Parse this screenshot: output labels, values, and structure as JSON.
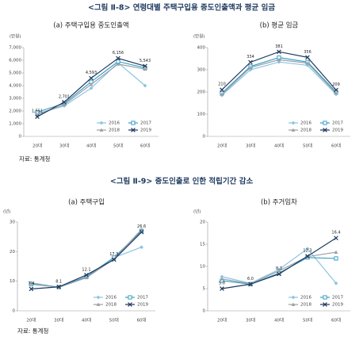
{
  "figures": [
    {
      "title": "<그림 Ⅱ-8> 연령대별 주택구입용 중도인출액과 평균 임금",
      "source": "자료: 통계청"
    },
    {
      "title": "<그림 Ⅱ-9> 중도인출로 인한 적립기간 감소",
      "source": "자료: 통계청"
    }
  ],
  "chart_data": [
    {
      "type": "line",
      "title": "(a) 주택구입용 중도인출액",
      "ylabel": "(만원)",
      "categories": [
        "20대",
        "30대",
        "40대",
        "50대",
        "60대"
      ],
      "ylim": [
        0,
        7000
      ],
      "yticks": [
        0,
        {
          "value": 1000,
          "label": "1,000"
        },
        {
          "value": 2000,
          "label": "2,000"
        },
        {
          "value": 3000,
          "label": "3,000"
        },
        {
          "value": 4000,
          "label": "4,000"
        },
        {
          "value": 5000,
          "label": "5,000"
        },
        {
          "value": 6000,
          "label": "6,000"
        },
        {
          "value": 7000,
          "label": "7,000"
        }
      ],
      "series": [
        {
          "name": "2016",
          "color": "#8cc4e0",
          "marker": "diamond",
          "values": [
            1800,
            2400,
            3800,
            5800,
            4000
          ]
        },
        {
          "name": "2017",
          "color": "#3a9fc4",
          "marker": "square",
          "values": [
            1900,
            2600,
            4300,
            5900,
            5400
          ]
        },
        {
          "name": "2018",
          "color": "#9aa0a6",
          "marker": "triangle",
          "values": [
            1700,
            2500,
            4100,
            5700,
            5300
          ]
        },
        {
          "name": "2019",
          "color": "#1f3a5f",
          "marker": "x",
          "values": [
            1551,
            2701,
            4593,
            6156,
            5543
          ],
          "value_labels": [
            "1,551",
            "2,701",
            "4,593",
            "6,156",
            "5,543"
          ]
        }
      ]
    },
    {
      "type": "line",
      "title": "(b) 평균 임금",
      "ylabel": "(만원)",
      "categories": [
        "20대",
        "30대",
        "40대",
        "50대",
        "60대"
      ],
      "ylim": [
        0,
        400
      ],
      "yticks": [
        0,
        100,
        200,
        300,
        400
      ],
      "series": [
        {
          "name": "2016",
          "color": "#8cc4e0",
          "marker": "diamond",
          "values": [
            185,
            300,
            335,
            320,
            190
          ]
        },
        {
          "name": "2017",
          "color": "#3a9fc4",
          "marker": "square",
          "values": [
            195,
            315,
            355,
            335,
            200
          ]
        },
        {
          "name": "2018",
          "color": "#9aa0a6",
          "marker": "triangle",
          "values": [
            190,
            310,
            345,
            330,
            195
          ]
        },
        {
          "name": "2019",
          "color": "#1f3a5f",
          "marker": "x",
          "values": [
            210,
            334,
            381,
            356,
            209
          ],
          "value_labels": [
            "210",
            "334",
            "381",
            "356",
            "209"
          ]
        }
      ]
    },
    {
      "type": "line",
      "title": "(a) 주택구입",
      "ylabel": "(년)",
      "categories": [
        "20대",
        "30대",
        "40대",
        "50대",
        "60대"
      ],
      "ylim": [
        0,
        30
      ],
      "yticks": [
        0,
        10,
        20,
        30
      ],
      "series": [
        {
          "name": "2016",
          "color": "#8cc4e0",
          "marker": "diamond",
          "values": [
            9.5,
            8,
            11.5,
            18,
            21.5
          ]
        },
        {
          "name": "2017",
          "color": "#3a9fc4",
          "marker": "square",
          "values": [
            9,
            8,
            11.5,
            18,
            27
          ]
        },
        {
          "name": "2018",
          "color": "#9aa0a6",
          "marker": "triangle",
          "values": [
            9.3,
            7.9,
            11.2,
            17.5,
            27.5
          ]
        },
        {
          "name": "2019",
          "color": "#1f3a5f",
          "marker": "x",
          "values": [
            7.4,
            8.1,
            12.1,
            17.3,
            26.6
          ],
          "value_labels": [
            "7.4",
            "8.1",
            "12.1",
            "17.3",
            "26.6"
          ]
        }
      ]
    },
    {
      "type": "line",
      "title": "(b) 주거임차",
      "ylabel": "(년)",
      "categories": [
        "20대",
        "30대",
        "40대",
        "50대",
        "60대"
      ],
      "ylim": [
        0,
        20
      ],
      "yticks": [
        0,
        5,
        10,
        15,
        20
      ],
      "series": [
        {
          "name": "2016",
          "color": "#8cc4e0",
          "marker": "diamond",
          "values": [
            7.7,
            6.2,
            9.3,
            14,
            6.2
          ]
        },
        {
          "name": "2017",
          "color": "#3a9fc4",
          "marker": "square",
          "values": [
            6.8,
            6,
            8.5,
            12,
            11.8
          ]
        },
        {
          "name": "2018",
          "color": "#9aa0a6",
          "marker": "triangle",
          "values": [
            7.2,
            6.1,
            9,
            12.2,
            13.2
          ]
        },
        {
          "name": "2019",
          "color": "#1f3a5f",
          "marker": "x",
          "values": [
            5.0,
            6.0,
            8.3,
            12.3,
            16.4
          ],
          "value_labels": [
            "5.0",
            "6.0",
            "8.3",
            "12.3",
            "16.4"
          ]
        }
      ]
    }
  ]
}
